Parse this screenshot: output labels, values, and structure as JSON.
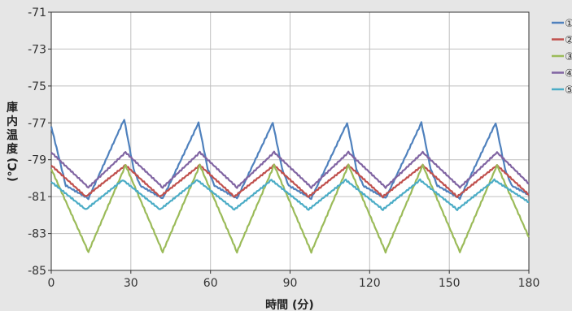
{
  "chart_data": {
    "type": "line",
    "xlabel": "時間 (分)",
    "ylabel": "庫内温度 (℃)",
    "xlim": [
      0,
      180
    ],
    "ylim": [
      -85,
      -71
    ],
    "xticks": [
      0,
      30,
      60,
      90,
      120,
      150,
      180
    ],
    "yticks": [
      -85,
      -83,
      -81,
      -79,
      -77,
      -75,
      -73,
      -71
    ],
    "grid": true,
    "legend_position": "right",
    "series": [
      {
        "name": "①",
        "color": "#4f81bd",
        "x": [
          0,
          5.5,
          14,
          27.5,
          31,
          33.5,
          42,
          55.5,
          59,
          61.5,
          70,
          83.5,
          87,
          89.5,
          98,
          111.5,
          115,
          117.5,
          126,
          139.5,
          143,
          145.5,
          154,
          167.5,
          171,
          173.5,
          180
        ],
        "y": [
          -77.2,
          -80.4,
          -81.1,
          -76.8,
          -79.5,
          -80.4,
          -81.1,
          -77.0,
          -79.5,
          -80.4,
          -81.1,
          -77.0,
          -79.5,
          -80.4,
          -81.1,
          -77.0,
          -79.5,
          -80.4,
          -81.1,
          -77.0,
          -79.5,
          -80.4,
          -81.1,
          -77.0,
          -79.5,
          -80.4,
          -80.9
        ]
      },
      {
        "name": "②",
        "color": "#c0504d",
        "x": [
          0,
          13,
          28,
          41,
          56,
          69,
          84,
          97,
          112,
          125,
          140,
          153,
          168,
          180
        ],
        "y": [
          -79.3,
          -81.0,
          -79.3,
          -81.0,
          -79.3,
          -81.0,
          -79.3,
          -81.0,
          -79.3,
          -81.0,
          -79.3,
          -81.0,
          -79.3,
          -80.9
        ]
      },
      {
        "name": "③",
        "color": "#9bbb59",
        "x": [
          0,
          14,
          28,
          42,
          56,
          70,
          84,
          98,
          112,
          126,
          140,
          154,
          168,
          180
        ],
        "y": [
          -79.5,
          -84.0,
          -79.3,
          -84.0,
          -79.3,
          -84.0,
          -79.3,
          -84.0,
          -79.3,
          -84.0,
          -79.3,
          -84.0,
          -79.3,
          -83.2
        ]
      },
      {
        "name": "④",
        "color": "#8064a2",
        "x": [
          0,
          14,
          28,
          42,
          56,
          70,
          84,
          98,
          112,
          126,
          140,
          154,
          168,
          180
        ],
        "y": [
          -78.6,
          -80.5,
          -78.6,
          -80.5,
          -78.6,
          -80.5,
          -78.6,
          -80.5,
          -78.6,
          -80.5,
          -78.6,
          -80.5,
          -78.6,
          -80.3
        ]
      },
      {
        "name": "⑤",
        "color": "#4bacc6",
        "x": [
          0,
          13,
          27,
          41,
          55,
          69,
          83,
          97,
          111,
          125,
          139,
          153,
          167,
          180
        ],
        "y": [
          -80.2,
          -81.7,
          -80.1,
          -81.7,
          -80.1,
          -81.7,
          -80.1,
          -81.7,
          -80.1,
          -81.7,
          -80.1,
          -81.7,
          -80.1,
          -81.3
        ]
      }
    ]
  }
}
